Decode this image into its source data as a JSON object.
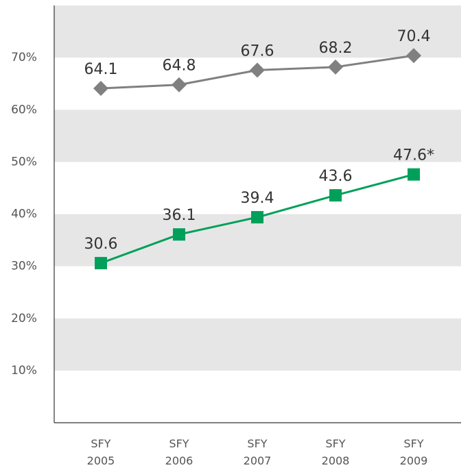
{
  "chart_data": {
    "type": "line",
    "categories": [
      "SFY 2005",
      "SFY 2006",
      "SFY 2007",
      "SFY 2008",
      "SFY 2009"
    ],
    "series": [
      {
        "color": "#808080",
        "marker": "diamond",
        "values": [
          64.1,
          64.8,
          67.6,
          68.2,
          70.4
        ]
      },
      {
        "color": "#00a05a",
        "marker": "square",
        "values": [
          30.6,
          36.1,
          39.4,
          43.6,
          47.6
        ],
        "value_labels": [
          "30.6",
          "36.1",
          "39.4",
          "43.6",
          "47.6*"
        ]
      }
    ],
    "ylim": [
      0,
      80
    ],
    "yticks": [
      {
        "value": 10,
        "label": "10%"
      },
      {
        "value": 20,
        "label": "20%"
      },
      {
        "value": 30,
        "label": "30%"
      },
      {
        "value": 40,
        "label": "40%"
      },
      {
        "value": 50,
        "label": "50%"
      },
      {
        "value": 60,
        "label": "60%"
      },
      {
        "value": 70,
        "label": "70%"
      }
    ],
    "grid": "bands"
  }
}
